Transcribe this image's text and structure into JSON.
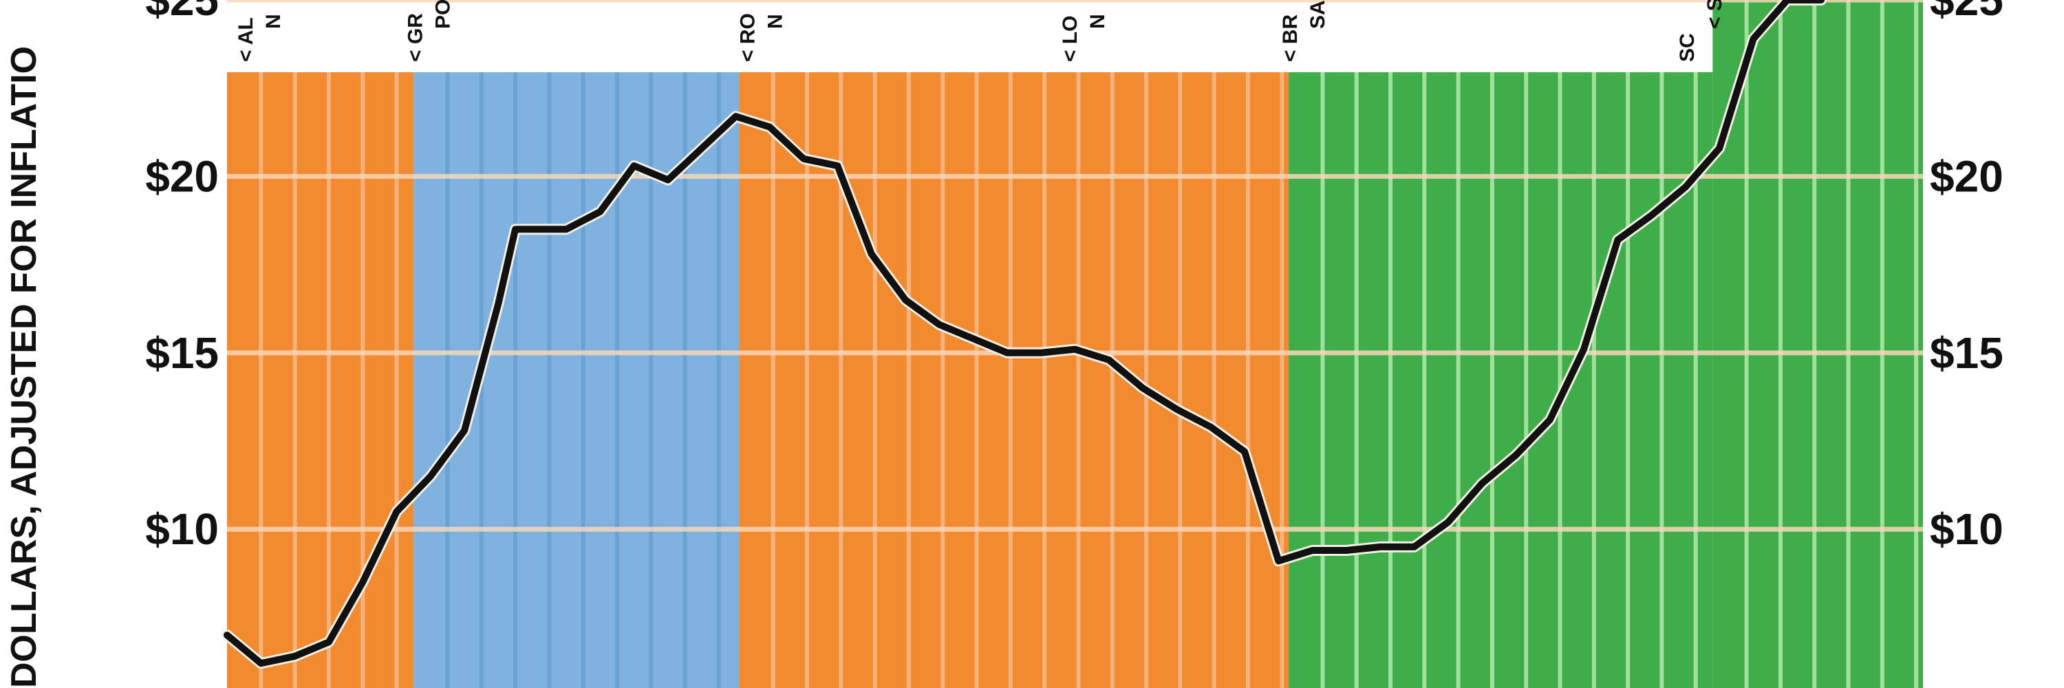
{
  "chart_data": {
    "type": "line",
    "ylabel": "DOLLARS, ADJUSTED FOR INFLATIO",
    "ylim": [
      5.5,
      25
    ],
    "yticks": [
      {
        "value": 25,
        "label": "$25"
      },
      {
        "value": 20,
        "label": "$20"
      },
      {
        "value": 15,
        "label": "$15"
      },
      {
        "value": 10,
        "label": "$10"
      }
    ],
    "xlim": [
      0,
      50
    ],
    "bands": [
      {
        "from": 0,
        "to": 5.5,
        "color": "#f28a30"
      },
      {
        "from": 5.5,
        "to": 15.1,
        "color": "#7fb2de"
      },
      {
        "from": 15.1,
        "to": 31.3,
        "color": "#f28a30"
      },
      {
        "from": 31.3,
        "to": 43.8,
        "color": "#3fae4a"
      },
      {
        "from": 43.8,
        "to": 50,
        "color": "#3fae4a"
      }
    ],
    "annotations": [
      {
        "x": 0.3,
        "line1": "< AL",
        "line2": "N"
      },
      {
        "x": 5.3,
        "line1": "< GR",
        "line2": "PO"
      },
      {
        "x": 15.1,
        "line1": "< RO",
        "line2": "N"
      },
      {
        "x": 24.6,
        "line1": "< LO",
        "line2": "N"
      },
      {
        "x": 31.1,
        "line1": "< BR",
        "line2": "SA"
      },
      {
        "x": 42.8,
        "line1": "SC",
        "line2": "< SA"
      }
    ],
    "series": [
      {
        "color": "#111111",
        "x": [
          0,
          1,
          2,
          3,
          4,
          5,
          6,
          7,
          8,
          8.5,
          9,
          10,
          11,
          12,
          13,
          14,
          15,
          16,
          17,
          18,
          19,
          20,
          21,
          22,
          23,
          24,
          25,
          26,
          27,
          28,
          29,
          30,
          31,
          32,
          33,
          34,
          35,
          36,
          37,
          38,
          39,
          40,
          41,
          42,
          43,
          44,
          45,
          46,
          47
        ],
        "values": [
          7.0,
          6.2,
          6.4,
          6.8,
          8.5,
          10.5,
          11.5,
          12.8,
          16.4,
          18.5,
          18.5,
          18.5,
          19.0,
          20.3,
          19.9,
          20.8,
          21.7,
          21.4,
          20.5,
          20.3,
          17.8,
          16.5,
          15.8,
          15.4,
          15.0,
          15.0,
          15.1,
          14.8,
          14.0,
          13.4,
          12.9,
          12.2,
          9.1,
          9.4,
          9.4,
          9.5,
          9.5,
          10.2,
          11.3,
          12.1,
          13.1,
          15.1,
          18.2,
          18.9,
          19.7,
          20.8,
          23.9,
          25.0,
          25.0
        ]
      }
    ]
  }
}
